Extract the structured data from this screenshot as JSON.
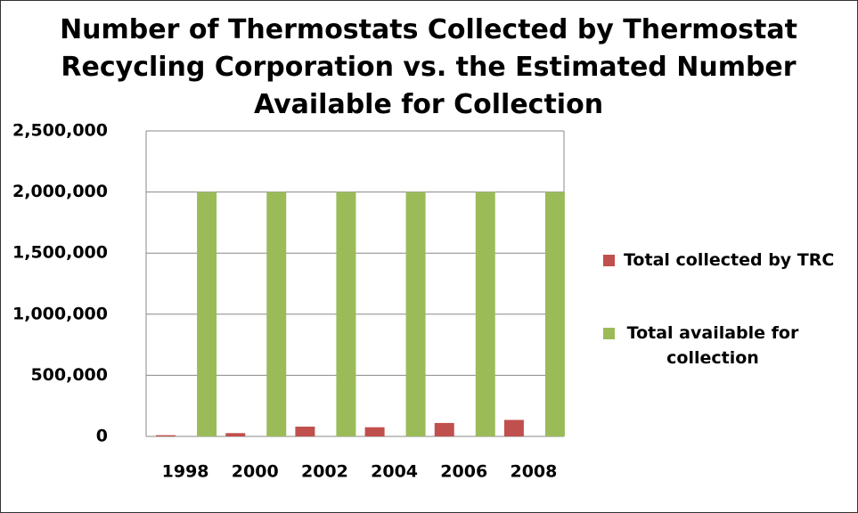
{
  "chart_data": {
    "type": "bar",
    "title": "Number of Thermostats Collected by Thermostat Recycling Corporation vs. the Estimated Number Available for Collection",
    "categories": [
      "1998",
      "2000",
      "2002",
      "2004",
      "2006",
      "2008"
    ],
    "series": [
      {
        "name": "Total collected by TRC",
        "color": "#c0504d",
        "values": [
          10000,
          27000,
          80000,
          75000,
          110000,
          135000
        ]
      },
      {
        "name": "Total available for collection",
        "color": "#9bbb59",
        "values": [
          2000000,
          2000000,
          2000000,
          2000000,
          2000000,
          2000000
        ]
      }
    ],
    "ylim": [
      0,
      2500000
    ],
    "yticks": [
      0,
      {
        "value": 500000,
        "label": "500,000"
      },
      {
        "value": 1000000,
        "label": "1,000,000"
      },
      {
        "value": 1500000,
        "label": "1,500,000"
      },
      {
        "value": 2000000,
        "label": "2,000,000"
      },
      {
        "value": 2500000,
        "label": "2,500,000"
      }
    ],
    "grid": true,
    "legend": "right"
  }
}
